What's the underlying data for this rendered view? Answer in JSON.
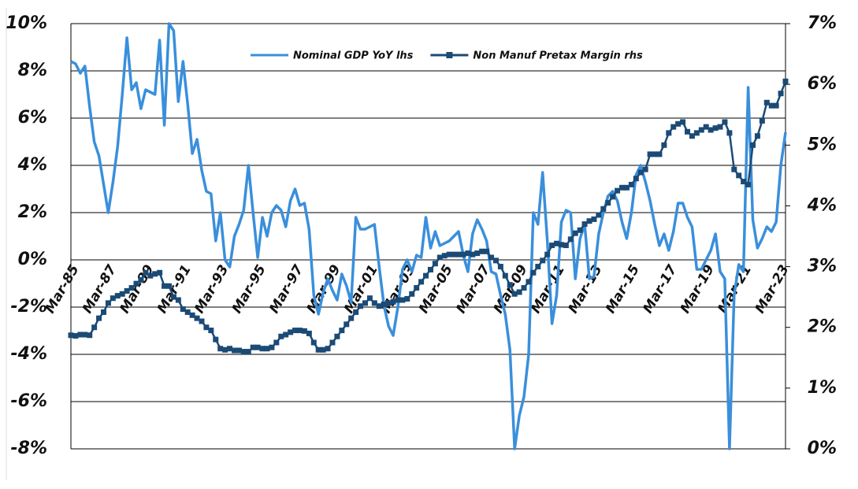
{
  "chart_data": {
    "type": "line",
    "categories": [
      "Mar-85",
      null,
      null,
      null,
      null,
      null,
      null,
      null,
      "Mar-87",
      null,
      null,
      null,
      null,
      null,
      null,
      null,
      "Mar-89",
      null,
      null,
      null,
      null,
      null,
      null,
      null,
      "Mar-91",
      null,
      null,
      null,
      null,
      null,
      null,
      null,
      "Mar-93",
      null,
      null,
      null,
      null,
      null,
      null,
      null,
      "Mar-95",
      null,
      null,
      null,
      null,
      null,
      null,
      null,
      "Mar-97",
      null,
      null,
      null,
      null,
      null,
      null,
      null,
      "Mar-99",
      null,
      null,
      null,
      null,
      null,
      null,
      null,
      "Mar-01",
      null,
      null,
      null,
      null,
      null,
      null,
      null,
      "Mar-03",
      null,
      null,
      null,
      null,
      null,
      null,
      null,
      "Mar-05",
      null,
      null,
      null,
      null,
      null,
      null,
      null,
      "Mar-07",
      null,
      null,
      null,
      null,
      null,
      null,
      null,
      "Mar-09",
      null,
      null,
      null,
      null,
      null,
      null,
      null,
      "Mar-11",
      null,
      null,
      null,
      null,
      null,
      null,
      null,
      "Mar-13",
      null,
      null,
      null,
      null,
      null,
      null,
      null,
      "Mar-15",
      null,
      null,
      null,
      null,
      null,
      null,
      null,
      "Mar-17",
      null,
      null,
      null,
      null,
      null,
      null,
      null,
      "Mar-19",
      null,
      null,
      null,
      null,
      null,
      null,
      null,
      "Mar-21",
      null,
      null,
      null,
      null,
      null,
      null,
      null,
      "Mar-23",
      null
    ],
    "series": [
      {
        "name": "Nominal GDP YoY lhs",
        "color": "#3a8fdb",
        "axis": "y",
        "marker": false,
        "values": [
          8.4,
          8.3,
          7.9,
          8.2,
          6.5,
          5.0,
          4.4,
          3.2,
          2.0,
          3.3,
          4.8,
          7.0,
          9.4,
          7.2,
          7.5,
          6.4,
          7.2,
          7.1,
          7.0,
          9.3,
          5.7,
          10.0,
          9.7,
          6.7,
          8.4,
          6.6,
          4.5,
          5.1,
          3.8,
          2.9,
          2.8,
          0.8,
          2.0,
          0.0,
          -0.3,
          1.0,
          1.5,
          2.1,
          4.0,
          2.0,
          0.1,
          1.8,
          1.0,
          2.0,
          2.3,
          2.1,
          1.4,
          2.5,
          3.0,
          2.3,
          2.4,
          1.3,
          -1.5,
          -2.3,
          -1.4,
          -0.8,
          -1.3,
          -1.7,
          -0.6,
          -1.1,
          -1.8,
          1.8,
          1.3,
          1.3,
          1.4,
          1.5,
          -0.3,
          -1.9,
          -2.8,
          -3.2,
          -2.0,
          -0.4,
          0.0,
          -0.5,
          0.2,
          0.1,
          1.8,
          0.5,
          1.2,
          0.6,
          0.7,
          0.8,
          1.0,
          1.2,
          0.2,
          -0.5,
          1.1,
          1.7,
          1.3,
          0.8,
          -0.5,
          -0.6,
          -1.5,
          -2.3,
          -3.8,
          -8.0,
          -6.6,
          -5.8,
          -4.0,
          2.0,
          1.5,
          3.7,
          0.8,
          -2.7,
          -1.5,
          1.6,
          2.1,
          2.0,
          -0.8,
          0.9,
          1.5,
          -0.8,
          -0.7,
          1.1,
          2.0,
          2.7,
          2.9,
          2.5,
          1.6,
          0.9,
          2.0,
          3.6,
          4.0,
          3.3,
          2.5,
          1.5,
          0.6,
          1.1,
          0.4,
          1.2,
          2.4,
          2.4,
          1.8,
          1.4,
          -0.4,
          -0.4,
          0.0,
          0.4,
          1.1,
          -0.5,
          -0.8,
          -8.0,
          -1.5,
          -0.2,
          -0.5,
          7.3,
          1.7,
          0.5,
          0.9,
          1.4,
          1.2,
          1.6,
          4.0,
          5.4
        ]
      },
      {
        "name": "Non Manuf Pretax Margin rhs",
        "color": "#1b4a75",
        "axis": "y2",
        "marker": true,
        "values": [
          1.87,
          1.86,
          1.88,
          1.88,
          1.87,
          2.0,
          2.15,
          2.25,
          2.4,
          2.48,
          2.52,
          2.55,
          2.6,
          2.65,
          2.72,
          2.78,
          2.9,
          2.85,
          2.88,
          2.9,
          2.68,
          2.68,
          2.5,
          2.45,
          2.3,
          2.25,
          2.2,
          2.15,
          2.1,
          2.0,
          1.95,
          1.8,
          1.65,
          1.63,
          1.65,
          1.62,
          1.62,
          1.6,
          1.6,
          1.67,
          1.67,
          1.65,
          1.65,
          1.67,
          1.75,
          1.85,
          1.88,
          1.92,
          1.95,
          1.95,
          1.94,
          1.9,
          1.75,
          1.63,
          1.63,
          1.65,
          1.75,
          1.85,
          1.95,
          2.05,
          2.15,
          2.25,
          2.35,
          2.4,
          2.48,
          2.4,
          2.35,
          2.38,
          2.4,
          2.42,
          2.45,
          2.45,
          2.47,
          2.55,
          2.65,
          2.75,
          2.85,
          2.95,
          3.05,
          3.15,
          3.18,
          3.2,
          3.2,
          3.2,
          3.2,
          3.22,
          3.2,
          3.22,
          3.25,
          3.25,
          3.15,
          3.1,
          3.0,
          2.85,
          2.7,
          2.55,
          2.58,
          2.65,
          2.75,
          2.9,
          3.0,
          3.1,
          3.2,
          3.35,
          3.38,
          3.36,
          3.35,
          3.45,
          3.55,
          3.6,
          3.7,
          3.75,
          3.78,
          3.85,
          3.95,
          4.05,
          4.15,
          4.25,
          4.3,
          4.3,
          4.35,
          4.45,
          4.55,
          4.6,
          4.85,
          4.85,
          4.85,
          5.0,
          5.2,
          5.3,
          5.35,
          5.38,
          5.22,
          5.15,
          5.2,
          5.25,
          5.3,
          5.25,
          5.28,
          5.3,
          5.38,
          5.2,
          4.6,
          4.5,
          4.4,
          4.35,
          5.0,
          5.15,
          5.4,
          5.7,
          5.65,
          5.65,
          5.85,
          6.05
        ]
      }
    ],
    "ylim": [
      -8,
      10
    ],
    "yticks": [
      {
        "value": -8,
        "label": "-8%"
      },
      {
        "value": -6,
        "label": "-6%"
      },
      {
        "value": -4,
        "label": "-4%"
      },
      {
        "value": -2,
        "label": "-2%"
      },
      {
        "value": 0,
        "label": "0%"
      },
      {
        "value": 2,
        "label": "2%"
      },
      {
        "value": 4,
        "label": "4%"
      },
      {
        "value": 6,
        "label": "6%"
      },
      {
        "value": 8,
        "label": "8%"
      },
      {
        "value": 10,
        "label": "10%"
      }
    ],
    "y2lim": [
      0,
      7
    ],
    "y2ticks": [
      {
        "value": 0,
        "label": "0%"
      },
      {
        "value": 1,
        "label": "1%"
      },
      {
        "value": 2,
        "label": "2%"
      },
      {
        "value": 3,
        "label": "3%"
      },
      {
        "value": 4,
        "label": "4%"
      },
      {
        "value": 5,
        "label": "5%"
      },
      {
        "value": 6,
        "label": "6%"
      },
      {
        "value": 7,
        "label": "7%"
      }
    ],
    "grid": true,
    "legend": "top"
  }
}
